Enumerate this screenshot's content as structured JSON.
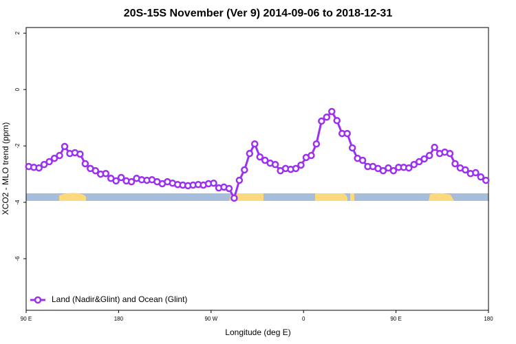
{
  "chart_data": {
    "type": "line",
    "title": "20S-15S November (Ver 9)   2014-09-06 to 2018-12-31",
    "x_label": "Longitude (deg E)",
    "y_label": "XCO2 - MLO trend (ppm)",
    "legend": "bottomleft",
    "xlim": [
      90,
      540
    ],
    "xticks": [
      {
        "value": 90,
        "label": "90 E"
      },
      180,
      {
        "value": 270,
        "label": "90 W"
      },
      {
        "value": 360,
        "label": "0"
      },
      {
        "value": 450,
        "label": "90 E"
      },
      {
        "value": 540,
        "label": "180"
      }
    ],
    "ylim": [
      -7.83,
      2.2
    ],
    "yticks": [
      2,
      0,
      -2,
      -4,
      -6
    ],
    "x": [
      92.5,
      97.5,
      102.5,
      107.5,
      112.5,
      117.5,
      122.5,
      127.5,
      132.5,
      137.5,
      142.5,
      147.5,
      152.5,
      157.5,
      162.5,
      167.5,
      172.5,
      177.5,
      182.5,
      187.5,
      192.5,
      197.5,
      202.5,
      207.5,
      212.5,
      217.5,
      222.5,
      227.5,
      232.5,
      237.5,
      242.5,
      247.5,
      252.5,
      257.5,
      262.5,
      267.5,
      272.5,
      277.5,
      282.5,
      287.5,
      292.5,
      297.5,
      302.5,
      307.5,
      312.5,
      317.5,
      322.5,
      327.5,
      332.5,
      337.5,
      342.5,
      347.5,
      352.5,
      357.5,
      362.5,
      367.5,
      372.5,
      377.5,
      382.5,
      387.5,
      392.5,
      397.5,
      402.5,
      407.5,
      412.5,
      417.5,
      422.5,
      427.5,
      432.5,
      437.5,
      442.5,
      447.5,
      452.5,
      457.5,
      462.5,
      467.5,
      472.5,
      477.5,
      482.5,
      487.5,
      492.5,
      497.5,
      502.5,
      507.5,
      512.5,
      517.5,
      522.5,
      527.5,
      532.5,
      537.5
    ],
    "series": [
      {
        "name": "Land (Nadir&Glint) and Ocean (Glint)",
        "color": "#9b30f0",
        "values": [
          -2.73,
          -2.76,
          -2.78,
          -2.66,
          -2.56,
          -2.44,
          -2.34,
          -2.02,
          -2.27,
          -2.24,
          -2.29,
          -2.63,
          -2.8,
          -2.88,
          -3.0,
          -2.98,
          -3.15,
          -3.24,
          -3.12,
          -3.24,
          -3.27,
          -3.15,
          -3.2,
          -3.22,
          -3.2,
          -3.27,
          -3.34,
          -3.27,
          -3.32,
          -3.37,
          -3.39,
          -3.41,
          -3.39,
          -3.37,
          -3.39,
          -3.34,
          -3.32,
          -3.49,
          -3.46,
          -3.51,
          -3.85,
          -3.22,
          -2.85,
          -2.27,
          -1.93,
          -2.39,
          -2.51,
          -2.61,
          -2.66,
          -2.88,
          -2.8,
          -2.83,
          -2.8,
          -2.68,
          -2.41,
          -2.34,
          -1.93,
          -1.12,
          -0.98,
          -0.78,
          -1.1,
          -1.56,
          -1.56,
          -2.07,
          -2.44,
          -2.51,
          -2.73,
          -2.73,
          -2.8,
          -2.88,
          -2.78,
          -2.88,
          -2.76,
          -2.76,
          -2.78,
          -2.66,
          -2.56,
          -2.46,
          -2.34,
          -2.05,
          -2.27,
          -2.22,
          -2.27,
          -2.63,
          -2.78,
          -2.85,
          -2.98,
          -2.95,
          -3.1,
          -3.22
        ]
      }
    ]
  }
}
